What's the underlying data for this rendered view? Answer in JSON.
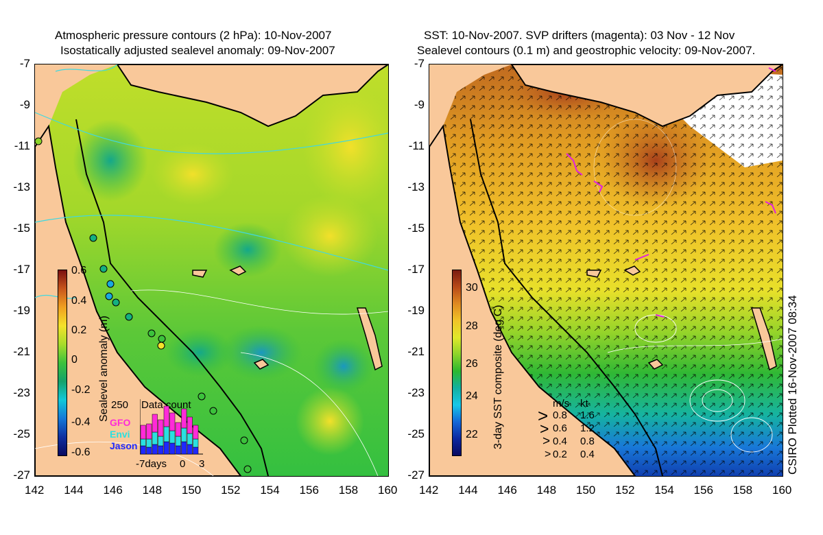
{
  "left_panel": {
    "title_line1": "Atmospheric pressure contours (2 hPa): 10-Nov-2007",
    "title_line2": "Isostatically adjusted sealevel anomaly: 09-Nov-2007",
    "y_ticks": [
      "-7",
      "-9",
      "-11",
      "-13",
      "-15",
      "-17",
      "-19",
      "-21",
      "-23",
      "-25",
      "-27"
    ],
    "x_ticks": [
      "142",
      "144",
      "146",
      "148",
      "150",
      "152",
      "154",
      "156",
      "158",
      "160"
    ],
    "colorbar": {
      "label": "Sealevel anomaly (m)",
      "ticks": [
        "0.6",
        "0.4",
        "0.2",
        "0",
        "-0.2",
        "-0.4",
        "-0.6"
      ],
      "stops": [
        "#7a0f0f",
        "#c8561c",
        "#f0a020",
        "#f4e22a",
        "#a8dc2a",
        "#3cc23c",
        "#15a26a",
        "#12c8d8",
        "#1478d8",
        "#1030a0",
        "#0a0a60"
      ]
    },
    "data_count": {
      "title": "Data count",
      "y_max_label": "250",
      "x_labels": [
        "-7days",
        "0",
        "3"
      ],
      "satellites": [
        {
          "name": "GFO",
          "color": "#ff2ad8"
        },
        {
          "name": "Envi",
          "color": "#2ae0e0"
        },
        {
          "name": "Jason",
          "color": "#1e28ff"
        }
      ]
    }
  },
  "right_panel": {
    "title_line1": "SST: 10-Nov-2007. SVP drifters (magenta): 03 Nov - 12 Nov",
    "title_line2": "Sealevel contours (0.1 m) and geostrophic velocity: 09-Nov-2007.",
    "y_ticks": [
      "-7",
      "-9",
      "-11",
      "-13",
      "-15",
      "-17",
      "-19",
      "-21",
      "-23",
      "-25",
      "-27"
    ],
    "x_ticks": [
      "142",
      "144",
      "146",
      "148",
      "150",
      "152",
      "154",
      "156",
      "158",
      "160"
    ],
    "colorbar": {
      "label": "3-day SST composite (deg C)",
      "ticks": [
        "30",
        "28",
        "26",
        "24",
        "22"
      ],
      "stops": [
        "#7a1a10",
        "#b84a18",
        "#e08a20",
        "#f0c428",
        "#e0e82a",
        "#8cd42a",
        "#2cb830",
        "#14b0a0",
        "#18c8e8",
        "#1468d8",
        "#0c28a0",
        "#0a0a60"
      ]
    },
    "velocity_legend": {
      "header_ms": "m/s",
      "header_kt": "kt",
      "rows": [
        {
          "ms": "0.8",
          "kt": "1.6"
        },
        {
          "ms": "0.6",
          "kt": "1.2"
        },
        {
          "ms": "0.4",
          "kt": "0.8"
        },
        {
          "ms": "0.2",
          "kt": "0.4"
        }
      ]
    },
    "side_note": "CSIRO Plotted 16-Nov-2007 08:34"
  },
  "colors": {
    "land": "#f9c89a",
    "coast": "#000000",
    "pressure_contour": "#40d8e0",
    "sealevel_contour": "#ffffff",
    "drifter": "#e020e0",
    "no_data": "#ffffff"
  }
}
